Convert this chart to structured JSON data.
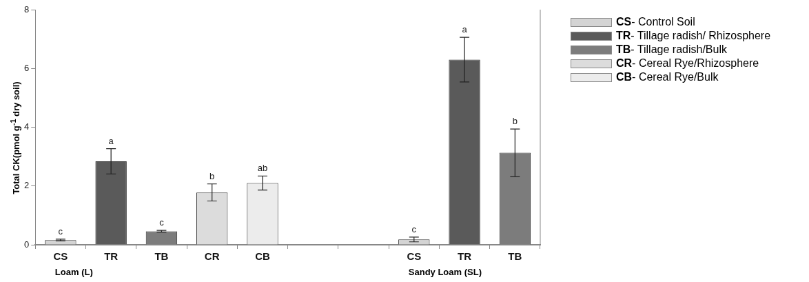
{
  "chart_data": {
    "type": "bar",
    "ylabel": "Total CK(pmol g$^{-1}$ dry soil)",
    "categories": [
      "CS",
      "TR",
      "TB",
      "CR",
      "CB",
      null,
      null,
      "CS",
      "TR",
      "TB"
    ],
    "series": [
      {
        "name": "CS- Control Soil",
        "color": "#d4d4d4",
        "values": [
          0.16,
          null,
          null,
          null,
          null,
          null,
          null,
          0.18,
          null,
          null
        ],
        "errors": [
          0.03,
          null,
          null,
          null,
          null,
          null,
          null,
          0.08,
          null,
          null
        ],
        "value_labels": [
          "c",
          null,
          null,
          null,
          null,
          null,
          null,
          "c",
          null,
          null
        ]
      },
      {
        "name": "TR- Tillage radish/ Rhizosphere",
        "color": "#5a5a5a",
        "values": [
          null,
          2.84,
          null,
          null,
          null,
          null,
          null,
          null,
          6.3,
          null
        ],
        "errors": [
          null,
          0.43,
          null,
          null,
          null,
          null,
          null,
          null,
          0.76,
          null
        ],
        "value_labels": [
          null,
          "a",
          null,
          null,
          null,
          null,
          null,
          null,
          "a",
          null
        ]
      },
      {
        "name": "TB- Tillage radish/Bulk",
        "color": "#7c7c7c",
        "values": [
          null,
          null,
          0.46,
          null,
          null,
          null,
          null,
          null,
          null,
          3.13
        ],
        "errors": [
          null,
          null,
          0.03,
          null,
          null,
          null,
          null,
          null,
          null,
          0.81
        ],
        "value_labels": [
          null,
          null,
          "c",
          null,
          null,
          null,
          null,
          null,
          null,
          "b"
        ]
      },
      {
        "name": "CR- Cereal Rye/Rhizosphere",
        "color": "#dcdcdc",
        "values": [
          null,
          null,
          null,
          1.78,
          null,
          null,
          null,
          null,
          null,
          null
        ],
        "errors": [
          null,
          null,
          null,
          0.29,
          null,
          null,
          null,
          null,
          null,
          null
        ],
        "value_labels": [
          null,
          null,
          null,
          "b",
          null,
          null,
          null,
          null,
          null,
          null
        ]
      },
      {
        "name": "CB- Cereal Rye/Bulk",
        "color": "#ececec",
        "values": [
          null,
          null,
          null,
          null,
          2.1,
          null,
          null,
          null,
          null,
          null
        ],
        "errors": [
          null,
          null,
          null,
          null,
          0.24,
          null,
          null,
          null,
          null,
          null
        ],
        "value_labels": [
          null,
          null,
          null,
          null,
          "ab",
          null,
          null,
          null,
          null,
          null
        ]
      }
    ],
    "ylim": [
      0,
      8
    ],
    "yticks": [
      0,
      2,
      4,
      6,
      8
    ],
    "grid": false,
    "legend": "top right",
    "annotations": [
      "Loam (L)",
      "Sandy Loam (SL)"
    ]
  }
}
